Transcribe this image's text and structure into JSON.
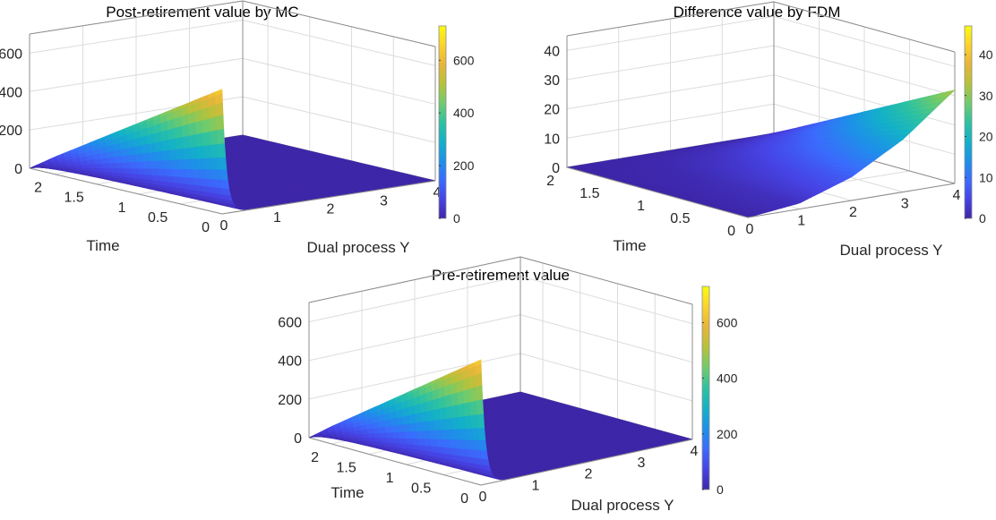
{
  "chart_data": [
    {
      "type": "surface",
      "title": "Post-retirement value by MC",
      "xlabel": "Dual process Y",
      "ylabel": "Time",
      "zlabel": "",
      "x_ticks": [
        "0",
        "1",
        "2",
        "3",
        "4"
      ],
      "t_ticks": [
        "0",
        "0.5",
        "1",
        "1.5",
        "2"
      ],
      "z_ticks": [
        "0",
        "200",
        "400",
        "600"
      ],
      "colorbar_ticks": [
        "0",
        "200",
        "400",
        "600"
      ],
      "xlim": [
        0,
        4
      ],
      "tlim": [
        0,
        2.3
      ],
      "zlim": [
        0,
        700
      ],
      "clim": [
        0,
        730
      ],
      "surface_peak_by_time": {
        "t": [
          2.3,
          2.0,
          1.5,
          1.0,
          0.5,
          0.0
        ],
        "value_at_Y0": [
          0,
          90,
          230,
          370,
          510,
          650
        ]
      },
      "decay_scale_Y": 0.08,
      "grid": true
    },
    {
      "type": "surface",
      "title": "Difference value by FDM",
      "xlabel": "Dual process Y",
      "ylabel": "Time",
      "zlabel": "",
      "x_ticks": [
        "0",
        "1",
        "2",
        "3",
        "4"
      ],
      "t_ticks": [
        "0",
        "0.5",
        "1",
        "1.5",
        "2"
      ],
      "z_ticks": [
        "0",
        "10",
        "20",
        "30",
        "40"
      ],
      "colorbar_ticks": [
        "0",
        "10",
        "20",
        "30",
        "40"
      ],
      "xlim": [
        0,
        4
      ],
      "tlim": [
        0,
        2
      ],
      "zlim": [
        0,
        45
      ],
      "clim": [
        0,
        47
      ],
      "surface_samples": {
        "Y": [
          0,
          1,
          2,
          3,
          4
        ],
        "value_at_t0": [
          0,
          2,
          8,
          18,
          32
        ],
        "value_at_t2": [
          0,
          0,
          0,
          0,
          0
        ]
      },
      "grid": true
    },
    {
      "type": "surface",
      "title": "Pre-retirement value",
      "xlabel": "Dual process Y",
      "ylabel": "Time",
      "zlabel": "",
      "x_ticks": [
        "0",
        "1",
        "2",
        "3",
        "4"
      ],
      "t_ticks": [
        "0",
        "0.5",
        "1",
        "1.5",
        "2"
      ],
      "z_ticks": [
        "0",
        "200",
        "400",
        "600"
      ],
      "colorbar_ticks": [
        "0",
        "200",
        "400",
        "600"
      ],
      "xlim": [
        0,
        4
      ],
      "tlim": [
        0,
        2.3
      ],
      "zlim": [
        0,
        700
      ],
      "clim": [
        0,
        730
      ],
      "surface_peak_by_time": {
        "t": [
          2.3,
          2.0,
          1.5,
          1.0,
          0.5,
          0.0
        ],
        "value_at_Y0": [
          0,
          90,
          230,
          370,
          510,
          650
        ]
      },
      "decay_scale_Y": 0.08,
      "grid": true
    }
  ],
  "colormap": {
    "name": "parula",
    "stops": [
      "#3e26a8",
      "#4743e4",
      "#3b6bfc",
      "#1d91e8",
      "#13b1c8",
      "#2ec2a0",
      "#71cb6b",
      "#b6c23b",
      "#e7b53a",
      "#fbd22e",
      "#f9fb0e"
    ]
  }
}
